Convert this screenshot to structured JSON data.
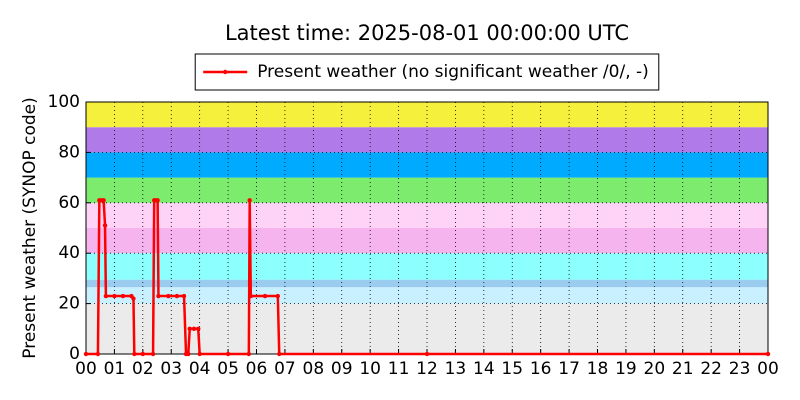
{
  "chart_data": {
    "type": "line",
    "title": "Latest time: 2025-08-01 00:00:00 UTC",
    "y_label": "Present weather (SYNOP code)",
    "x": [
      0,
      0.42,
      0.47,
      0.55,
      0.62,
      0.67,
      0.7,
      1.0,
      1.3,
      1.6,
      1.67,
      1.7,
      2.0,
      2.36,
      2.4,
      2.45,
      2.52,
      2.55,
      2.9,
      3.2,
      3.45,
      3.52,
      3.6,
      3.65,
      3.8,
      3.95,
      4.0,
      5.0,
      5.73,
      5.76,
      5.8,
      6.3,
      6.75,
      6.8,
      12,
      24
    ],
    "series": [
      {
        "name": "Present weather (no significant weather /0/, -)",
        "color": "#ff0000",
        "values": [
          0,
          0,
          61,
          61,
          61,
          51,
          23,
          23,
          23,
          23,
          22,
          0,
          0,
          0,
          61,
          61,
          61,
          23,
          23,
          23,
          23,
          0,
          0,
          10,
          10,
          10,
          0,
          0,
          0,
          61,
          23,
          23,
          23,
          0,
          0,
          0
        ]
      }
    ],
    "xlim": [
      0,
      24
    ],
    "xticks": [
      {
        "value": 0,
        "label": "00"
      },
      {
        "value": 1,
        "label": "01"
      },
      {
        "value": 2,
        "label": "02"
      },
      {
        "value": 3,
        "label": "03"
      },
      {
        "value": 4,
        "label": "04"
      },
      {
        "value": 5,
        "label": "05"
      },
      {
        "value": 6,
        "label": "06"
      },
      {
        "value": 7,
        "label": "07"
      },
      {
        "value": 8,
        "label": "08"
      },
      {
        "value": 9,
        "label": "09"
      },
      {
        "value": 10,
        "label": "10"
      },
      {
        "value": 11,
        "label": "11"
      },
      {
        "value": 12,
        "label": "12"
      },
      {
        "value": 13,
        "label": "13"
      },
      {
        "value": 14,
        "label": "14"
      },
      {
        "value": 15,
        "label": "15"
      },
      {
        "value": 16,
        "label": "16"
      },
      {
        "value": 17,
        "label": "17"
      },
      {
        "value": 18,
        "label": "18"
      },
      {
        "value": 19,
        "label": "19"
      },
      {
        "value": 20,
        "label": "20"
      },
      {
        "value": 21,
        "label": "21"
      },
      {
        "value": 22,
        "label": "22"
      },
      {
        "value": 23,
        "label": "23"
      },
      {
        "value": 24,
        "label": "00"
      }
    ],
    "ylim": [
      0,
      100
    ],
    "yticks": [
      0,
      20,
      40,
      60,
      80,
      100
    ],
    "grid": true,
    "legend": "top",
    "bands": [
      {
        "from": 0,
        "to": 20,
        "color": "#ebebeb"
      },
      {
        "from": 20,
        "to": 26.5,
        "color": "#c8f0ff"
      },
      {
        "from": 26.5,
        "to": 29.5,
        "color": "#99ccee"
      },
      {
        "from": 29.5,
        "to": 40,
        "color": "#8cffff"
      },
      {
        "from": 40,
        "to": 50,
        "color": "#f5b4ee"
      },
      {
        "from": 50,
        "to": 60,
        "color": "#ffd2f8"
      },
      {
        "from": 60,
        "to": 70,
        "color": "#7deb6e"
      },
      {
        "from": 70,
        "to": 80,
        "color": "#00aaff"
      },
      {
        "from": 80,
        "to": 90,
        "color": "#b07ae8"
      },
      {
        "from": 90,
        "to": 100,
        "color": "#f5f03c"
      }
    ]
  }
}
